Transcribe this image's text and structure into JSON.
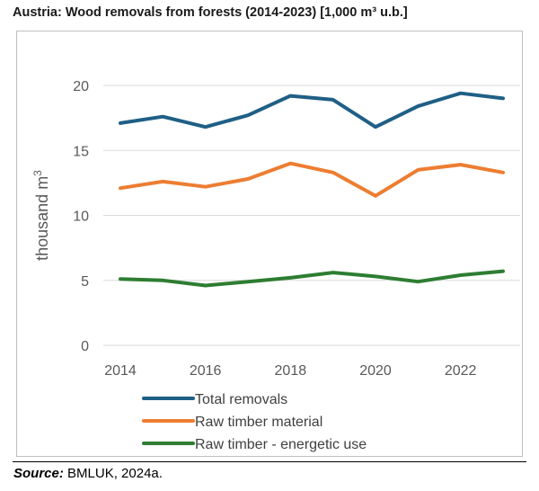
{
  "header": {
    "title": "Austria: Wood removals from forests (2014-2023) [1,000 m³ u.b.]"
  },
  "footer": {
    "source_label": "Source:",
    "source_text": "BMLUK, 2024a."
  },
  "chart_data": {
    "type": "line",
    "title": "Austria: Wood removals from forests (2014-2023) [1,000 m³ u.b.]",
    "xlabel": "",
    "ylabel": "thousand m",
    "ylabel_superscript": "3",
    "x": [
      2014,
      2015,
      2016,
      2017,
      2018,
      2019,
      2020,
      2021,
      2022,
      2023
    ],
    "xticks": [
      "2014",
      "2016",
      "2018",
      "2020",
      "2022"
    ],
    "yticks": [
      "0",
      "5",
      "10",
      "15",
      "20"
    ],
    "ylim": [
      0,
      20
    ],
    "grid": true,
    "legend_position": "bottom",
    "series": [
      {
        "name": "Total removals",
        "color": "#1f5f86",
        "values": [
          17.1,
          17.6,
          16.8,
          17.7,
          19.2,
          18.9,
          16.8,
          18.4,
          19.4,
          19.0
        ]
      },
      {
        "name": "Raw timber material",
        "color": "#ed7d31",
        "values": [
          12.1,
          12.6,
          12.2,
          12.8,
          14.0,
          13.3,
          11.5,
          13.5,
          13.9,
          13.3
        ]
      },
      {
        "name": "Raw timber - energetic use",
        "color": "#2e7d32",
        "values": [
          5.1,
          5.0,
          4.6,
          4.9,
          5.2,
          5.6,
          5.3,
          4.9,
          5.4,
          5.7
        ]
      }
    ]
  }
}
